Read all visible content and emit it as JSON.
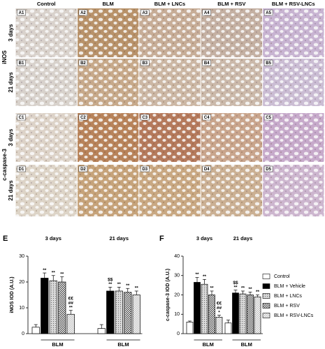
{
  "figure": {
    "columns": [
      "Control",
      "BLM",
      "BLM + LNCs",
      "BLM + RSV",
      "BLM + RSV-LNCs"
    ],
    "markers": [
      {
        "label": "iNOS",
        "rows": [
          {
            "time": "3 days",
            "panels": [
              "A1",
              "A2",
              "A3",
              "A4",
              "A5"
            ]
          },
          {
            "time": "21 days",
            "panels": [
              "B1",
              "B2",
              "B3",
              "B4",
              "B5"
            ]
          }
        ]
      },
      {
        "label": "c-caspase-3",
        "rows": [
          {
            "time": "3 days",
            "panels": [
              "C1",
              "C2",
              "C3",
              "C4",
              "C5"
            ]
          },
          {
            "time": "21 days",
            "panels": [
              "D1",
              "D2",
              "D3",
              "D4",
              "D5"
            ]
          }
        ]
      }
    ]
  },
  "chart_data": [
    {
      "type": "bar",
      "label": "E",
      "ylabel": "iNOS IOD (A.U.)",
      "groups": [
        "3 days",
        "21 days"
      ],
      "group_axis_label": "BLM",
      "ylim": [
        0,
        30
      ],
      "yticks": [
        0,
        10,
        20,
        30
      ],
      "series": [
        {
          "color": "#ffffff",
          "pattern": "solid",
          "values": [
            2.5,
            2
          ],
          "errors": [
            1,
            1.5
          ],
          "annotations": [
            [],
            []
          ]
        },
        {
          "color": "#000000",
          "pattern": "solid",
          "values": [
            21.5,
            16.5
          ],
          "errors": [
            2,
            1.5
          ],
          "annotations": [
            [
              "**"
            ],
            [
              "$$",
              "**"
            ]
          ]
        },
        {
          "color": "#d9d9d9",
          "pattern": "dots",
          "values": [
            20.5,
            16.5
          ],
          "errors": [
            2,
            1.5
          ],
          "annotations": [
            [
              "**"
            ],
            [
              "**"
            ]
          ]
        },
        {
          "color": "#444444",
          "pattern": "checker",
          "values": [
            20,
            16
          ],
          "errors": [
            2,
            1.5
          ],
          "annotations": [
            [
              "**"
            ],
            [
              "**"
            ]
          ]
        },
        {
          "color": "#bbbbbb",
          "pattern": "checker",
          "values": [
            7.5,
            15
          ],
          "errors": [
            1.5,
            1.5
          ],
          "annotations": [
            [
              "€€",
              "##",
              "**"
            ],
            [
              "**"
            ]
          ]
        }
      ]
    },
    {
      "type": "bar",
      "label": "F",
      "ylabel": "c-caspase-3 IOD (A.U.)",
      "groups": [
        "3 days",
        "21 days"
      ],
      "group_axis_label": "BLM",
      "ylim": [
        0,
        40
      ],
      "yticks": [
        0,
        10,
        20,
        30,
        40
      ],
      "legend": "right",
      "series": [
        {
          "name": "Control",
          "color": "#ffffff",
          "pattern": "solid",
          "values": [
            6,
            5.5
          ],
          "errors": [
            0.5,
            1.5
          ],
          "annotations": [
            [],
            []
          ]
        },
        {
          "name": "BLM + Vehicle",
          "color": "#000000",
          "pattern": "solid",
          "values": [
            26.5,
            21
          ],
          "errors": [
            2.5,
            1.5
          ],
          "annotations": [
            [
              "**"
            ],
            [
              "$$",
              "**"
            ]
          ]
        },
        {
          "name": "BLM + LNCs",
          "color": "#d9d9d9",
          "pattern": "dots",
          "values": [
            25.5,
            20.5
          ],
          "errors": [
            2.5,
            1.5
          ],
          "annotations": [
            [
              "**"
            ],
            [
              "**"
            ]
          ]
        },
        {
          "name": "BLM + RSV",
          "color": "#444444",
          "pattern": "checker",
          "values": [
            20,
            20
          ],
          "errors": [
            2,
            1.5
          ],
          "annotations": [
            [
              "**"
            ],
            [
              "**"
            ]
          ]
        },
        {
          "name": "BLM + RSV-LNCs",
          "color": "#bbbbbb",
          "pattern": "checker",
          "values": [
            8.5,
            19
          ],
          "errors": [
            1,
            1
          ],
          "annotations": [
            [
              "€€",
              "##",
              "*"
            ],
            [
              "**"
            ]
          ]
        }
      ]
    }
  ]
}
